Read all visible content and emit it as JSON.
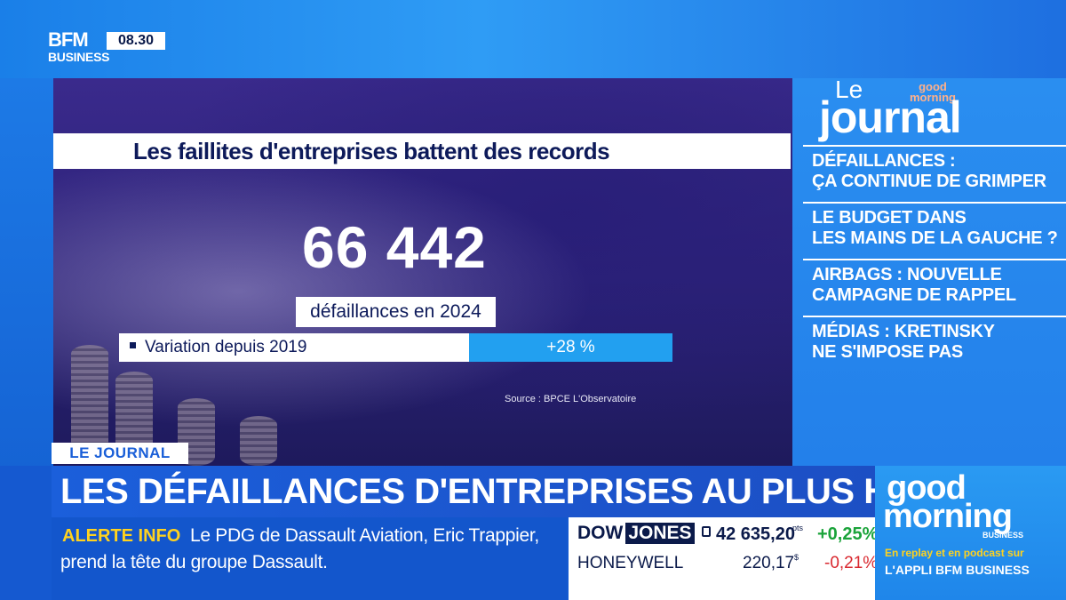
{
  "channel": {
    "logo_main": "BFM",
    "logo_sub": "BUSINESS",
    "clock": "08.30"
  },
  "graphic": {
    "headline": "Les faillites d'entreprises battent des records",
    "big_number": "66 442",
    "big_number_label": "défaillances en 2024",
    "variation_label": "Variation depuis 2019",
    "variation_value": "+28 %",
    "source": "Source : BPCE L'Observatoire"
  },
  "journal_panel": {
    "le": "Le",
    "title": "journal",
    "gm_line1": "good",
    "gm_line2": "morning",
    "items": [
      {
        "line1": "DÉFAILLANCES :",
        "line2": "ÇA CONTINUE DE GRIMPER"
      },
      {
        "line1": "LE BUDGET DANS",
        "line2": "LES MAINS DE LA GAUCHE ?"
      },
      {
        "line1": "AIRBAGS : NOUVELLE",
        "line2": "CAMPAGNE DE RAPPEL"
      },
      {
        "line1": "MÉDIAS : KRETINSKY",
        "line2": "NE S'IMPOSE PAS"
      }
    ]
  },
  "lower_third": {
    "tag": "LE JOURNAL",
    "title": "LES DÉFAILLANCES D'ENTREPRISES AU PLUS HAUT",
    "alert_label": "ALERTE INFO",
    "alert_text_1": "Le PDG de Dassault Aviation, Eric Trappier,",
    "alert_text_2": "prend la tête du groupe Dassault."
  },
  "ticker": {
    "index_name_1": "DOW",
    "index_name_2": "JONES",
    "index_value": "42 635,20",
    "index_unit": "pts",
    "index_change": "+0,25%",
    "stock_name": "HONEYWELL",
    "stock_value": "220,17",
    "stock_unit": "$",
    "stock_change": "-0,21%"
  },
  "promo": {
    "good": "good",
    "morning": "morning",
    "business": "BUSINESS",
    "line1": "En replay et en podcast sur",
    "line2": "L'APPLI BFM BUSINESS"
  },
  "colors": {
    "accent_blue": "#22a0f0",
    "alert_yellow": "#ffd21e",
    "positive": "#1aa33a",
    "negative": "#d9282f"
  }
}
